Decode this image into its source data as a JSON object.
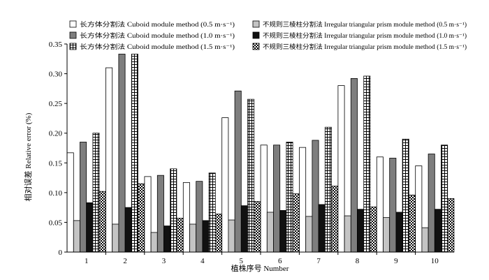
{
  "chart_data": {
    "type": "bar",
    "xlabel": "植株序号 Number",
    "ylabel": "相对误差 Relative error (%)",
    "categories": [
      "1",
      "2",
      "3",
      "4",
      "5",
      "6",
      "7",
      "8",
      "9",
      "10"
    ],
    "ylim": [
      0,
      0.35
    ],
    "yticks": [
      "0",
      "0.05",
      "0.10",
      "0.15",
      "0.20",
      "0.25",
      "0.30",
      "0.35"
    ],
    "grid": false,
    "legend_position": "top",
    "series": [
      {
        "name": "长方体分割法 Cuboid module method (0.5 m·s⁻¹)",
        "pattern": "white",
        "values": [
          0.167,
          0.31,
          0.127,
          0.117,
          0.226,
          0.18,
          0.176,
          0.28,
          0.16,
          0.145
        ]
      },
      {
        "name": "不规则三棱柱分割法 Irregular triangular prism module method (0.5 m·s⁻¹)",
        "pattern": "light-gray",
        "values": [
          0.053,
          0.047,
          0.033,
          0.047,
          0.054,
          0.067,
          0.06,
          0.061,
          0.058,
          0.041
        ]
      },
      {
        "name": "长方体分割法 Cuboid module method (1.0 m·s⁻¹)",
        "pattern": "dark-gray",
        "values": [
          0.185,
          0.333,
          0.129,
          0.119,
          0.271,
          0.18,
          0.188,
          0.292,
          0.158,
          0.165
        ]
      },
      {
        "name": "不规则三棱柱分割法 Irregular triangular prism module method (1.0 m·s⁻¹)",
        "pattern": "black",
        "values": [
          0.083,
          0.075,
          0.044,
          0.053,
          0.078,
          0.07,
          0.08,
          0.072,
          0.067,
          0.072
        ]
      },
      {
        "name": "长方体分割法 Cuboid module method (1.5 m·s⁻¹)",
        "pattern": "grid",
        "values": [
          0.2,
          0.333,
          0.14,
          0.133,
          0.257,
          0.185,
          0.21,
          0.296,
          0.19,
          0.18
        ]
      },
      {
        "name": "不规则三棱柱分割法 Irregular triangular prism module method (1.5 m·s⁻¹)",
        "pattern": "checker",
        "values": [
          0.102,
          0.115,
          0.057,
          0.064,
          0.085,
          0.098,
          0.111,
          0.076,
          0.096,
          0.09
        ]
      }
    ]
  }
}
